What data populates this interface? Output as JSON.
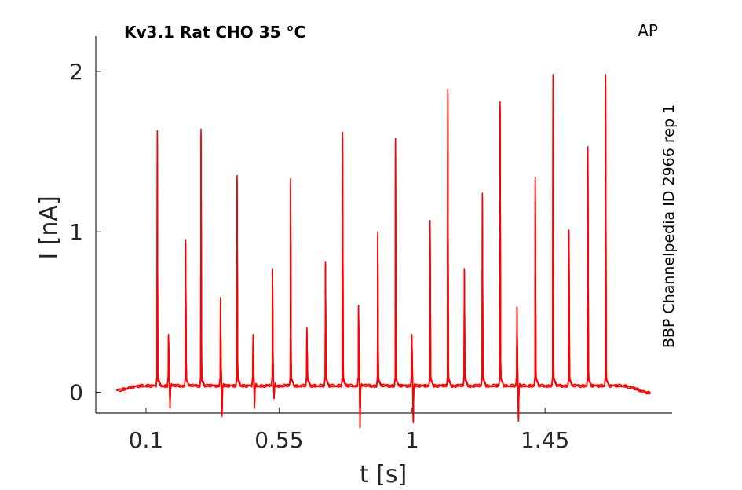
{
  "chart_data": {
    "type": "line",
    "title": "Kv3.1  Rat  CHO  35 °C",
    "protocol": "AP",
    "side_label": "BBP Channelpedia ID 2966 rep 1",
    "xlabel": "t [s]",
    "ylabel": "I [nA]",
    "xlim": [
      -0.07,
      1.88
    ],
    "ylim": [
      -0.13,
      2.22
    ],
    "x_ticks": [
      0.1,
      0.55,
      1,
      1.45
    ],
    "x_tick_labels": [
      "0.1",
      "0.55",
      "1",
      "1.45"
    ],
    "y_ticks": [
      0,
      1,
      2
    ],
    "y_tick_labels": [
      "0",
      "1",
      "2"
    ],
    "grid": false,
    "color": "#ff0000",
    "trace_start": 0.0,
    "trace_end": 1.81,
    "baseline_start": 0.01,
    "baseline_plateau": 0.04,
    "baseline_end": -0.01,
    "spikes": [
      {
        "t": 0.138,
        "peak": 1.63,
        "undershoot": 0.0
      },
      {
        "t": 0.176,
        "peak": 0.36,
        "undershoot": -0.1
      },
      {
        "t": 0.234,
        "peak": 0.95,
        "undershoot": 0.0
      },
      {
        "t": 0.286,
        "peak": 1.64,
        "undershoot": 0.0
      },
      {
        "t": 0.352,
        "peak": 0.59,
        "undershoot": -0.15
      },
      {
        "t": 0.408,
        "peak": 1.35,
        "undershoot": 0.0
      },
      {
        "t": 0.462,
        "peak": 0.36,
        "undershoot": -0.1
      },
      {
        "t": 0.528,
        "peak": 0.77,
        "undershoot": -0.04
      },
      {
        "t": 0.589,
        "peak": 1.33,
        "undershoot": 0.0
      },
      {
        "t": 0.644,
        "peak": 0.4,
        "undershoot": 0.0
      },
      {
        "t": 0.707,
        "peak": 0.81,
        "undershoot": 0.0
      },
      {
        "t": 0.765,
        "peak": 1.62,
        "undershoot": 0.0
      },
      {
        "t": 0.819,
        "peak": 0.54,
        "undershoot": -0.22
      },
      {
        "t": 0.884,
        "peak": 1.0,
        "undershoot": 0.0
      },
      {
        "t": 0.944,
        "peak": 1.58,
        "undershoot": 0.0
      },
      {
        "t": 0.999,
        "peak": 0.36,
        "undershoot": -0.19
      },
      {
        "t": 1.061,
        "peak": 1.07,
        "undershoot": 0.0
      },
      {
        "t": 1.121,
        "peak": 1.89,
        "undershoot": 0.0
      },
      {
        "t": 1.177,
        "peak": 0.77,
        "undershoot": 0.0
      },
      {
        "t": 1.238,
        "peak": 1.24,
        "undershoot": 0.0
      },
      {
        "t": 1.298,
        "peak": 1.81,
        "undershoot": 0.0
      },
      {
        "t": 1.355,
        "peak": 0.53,
        "undershoot": -0.18
      },
      {
        "t": 1.417,
        "peak": 1.34,
        "undershoot": 0.0
      },
      {
        "t": 1.477,
        "peak": 1.98,
        "undershoot": 0.0
      },
      {
        "t": 1.531,
        "peak": 1.01,
        "undershoot": 0.0
      },
      {
        "t": 1.595,
        "peak": 1.53,
        "undershoot": 0.0
      },
      {
        "t": 1.655,
        "peak": 1.98,
        "undershoot": 0.0
      }
    ]
  }
}
